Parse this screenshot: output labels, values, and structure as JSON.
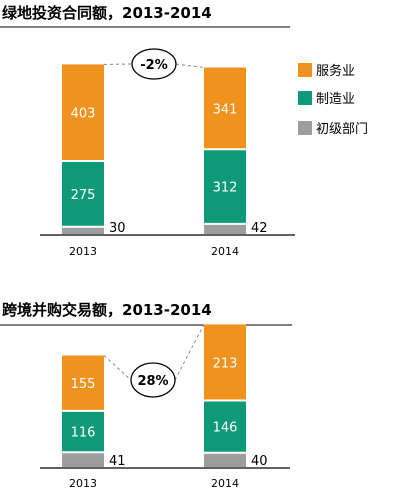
{
  "colors": {
    "services": "#f0921e",
    "manufacturing": "#0e9a78",
    "primary": "#9e9e9e"
  },
  "chart_data": [
    {
      "type": "bar",
      "stacked": true,
      "title": "绿地投资合同额，2013-2014",
      "categories": [
        "2013",
        "2014"
      ],
      "series": [
        {
          "name": "初级部门",
          "values": [
            30,
            42
          ]
        },
        {
          "name": "制造业",
          "values": [
            275,
            312
          ]
        },
        {
          "name": "服务业",
          "values": [
            403,
            341
          ]
        }
      ],
      "change_label": "-2%",
      "legend": "right"
    },
    {
      "type": "bar",
      "stacked": true,
      "title": "跨境并购交易额，2013-2014",
      "categories": [
        "2013",
        "2014"
      ],
      "series": [
        {
          "name": "",
          "values": [
            41,
            40
          ]
        },
        {
          "name": "",
          "values": [
            116,
            146
          ]
        },
        {
          "name": "",
          "values": [
            155,
            213
          ]
        }
      ],
      "change_label": "28%"
    }
  ]
}
